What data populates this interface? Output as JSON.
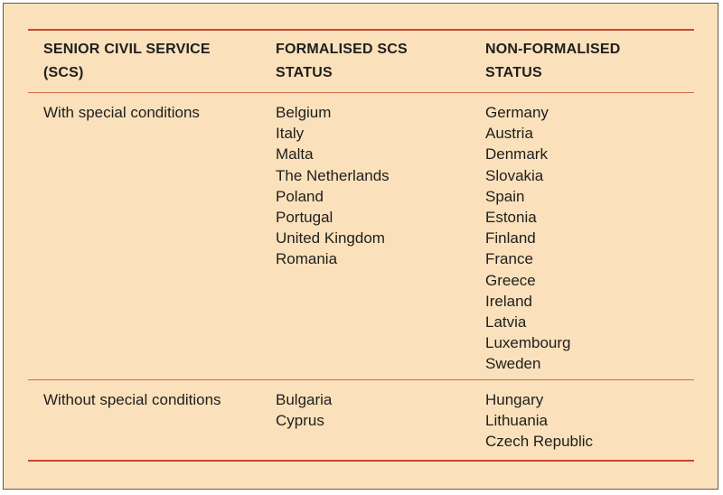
{
  "table": {
    "headers": [
      [
        "SENIOR CIVIL SERVICE",
        "(SCS)"
      ],
      [
        "FORMALISED SCS",
        "STATUS"
      ],
      [
        "NON-FORMALISED",
        "STATUS"
      ]
    ],
    "rows": [
      {
        "label": "With special conditions",
        "formalised": [
          "Belgium",
          "Italy",
          "Malta",
          "The Netherlands",
          "Poland",
          "Portugal",
          "United Kingdom",
          "Romania"
        ],
        "non_formalised": [
          "Germany",
          "Austria",
          "Denmark",
          "Slovakia",
          "Spain",
          "Estonia",
          "Finland",
          "France",
          "Greece",
          "Ireland",
          "Latvia",
          "Luxembourg",
          "Sweden"
        ]
      },
      {
        "label": "Without special conditions",
        "formalised": [
          "Bulgaria",
          "Cyprus"
        ],
        "non_formalised": [
          "Hungary",
          "Lithuania",
          "Czech Republic"
        ]
      }
    ],
    "colors": {
      "background": "#fbe1bb",
      "rule": "#c8462a",
      "text": "#1e1e1e"
    }
  }
}
